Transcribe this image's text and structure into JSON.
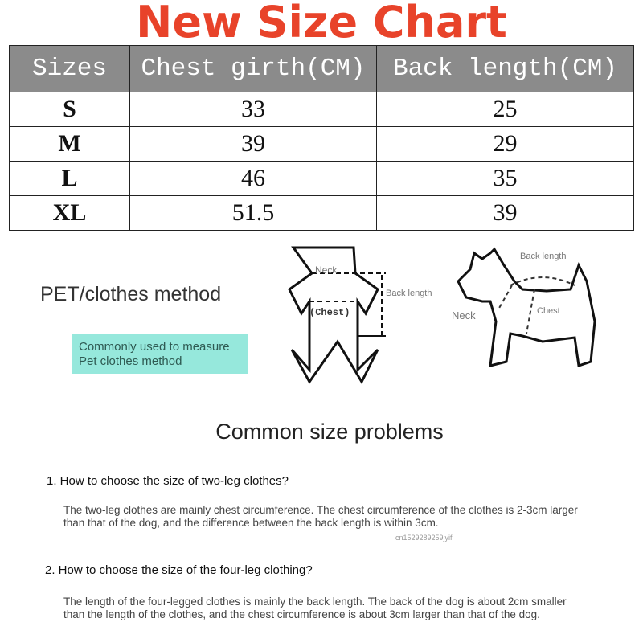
{
  "title": "New Size Chart",
  "table": {
    "headers": [
      "Sizes",
      "Chest girth(CM)",
      "Back length(CM)"
    ],
    "rows": [
      {
        "size": "S",
        "chest": "33",
        "back": "25"
      },
      {
        "size": "M",
        "chest": "39",
        "back": "29"
      },
      {
        "size": "L",
        "chest": "46",
        "back": "35"
      },
      {
        "size": "XL",
        "chest": "51.5",
        "back": "39"
      }
    ]
  },
  "method": {
    "label": "PET/clothes method",
    "note_line1": "Commonly used to measure",
    "note_line2": "Pet clothes method"
  },
  "clothes_diagram": {
    "neck": "Neck",
    "chest": "(Chest)",
    "back": "Back length"
  },
  "dog_diagram": {
    "back": "Back length",
    "neck": "Neck",
    "chest": "Chest"
  },
  "problems": {
    "heading": "Common size problems",
    "q1": "1. How to choose the size of two-leg clothes?",
    "a1": "The two-leg clothes are mainly chest circumference. The chest circumference of the clothes is 2-3cm larger than that of the dog, and the difference between the back length is within 3cm.",
    "watermark": "cn1529289259jyif",
    "q2": "2. How to choose the size of the four-leg clothing?",
    "a2": "The length of the four-legged clothes is mainly the back length. The back of the dog is about 2cm smaller than the length of the clothes, and the chest circumference is about 3cm larger than that of the dog."
  }
}
